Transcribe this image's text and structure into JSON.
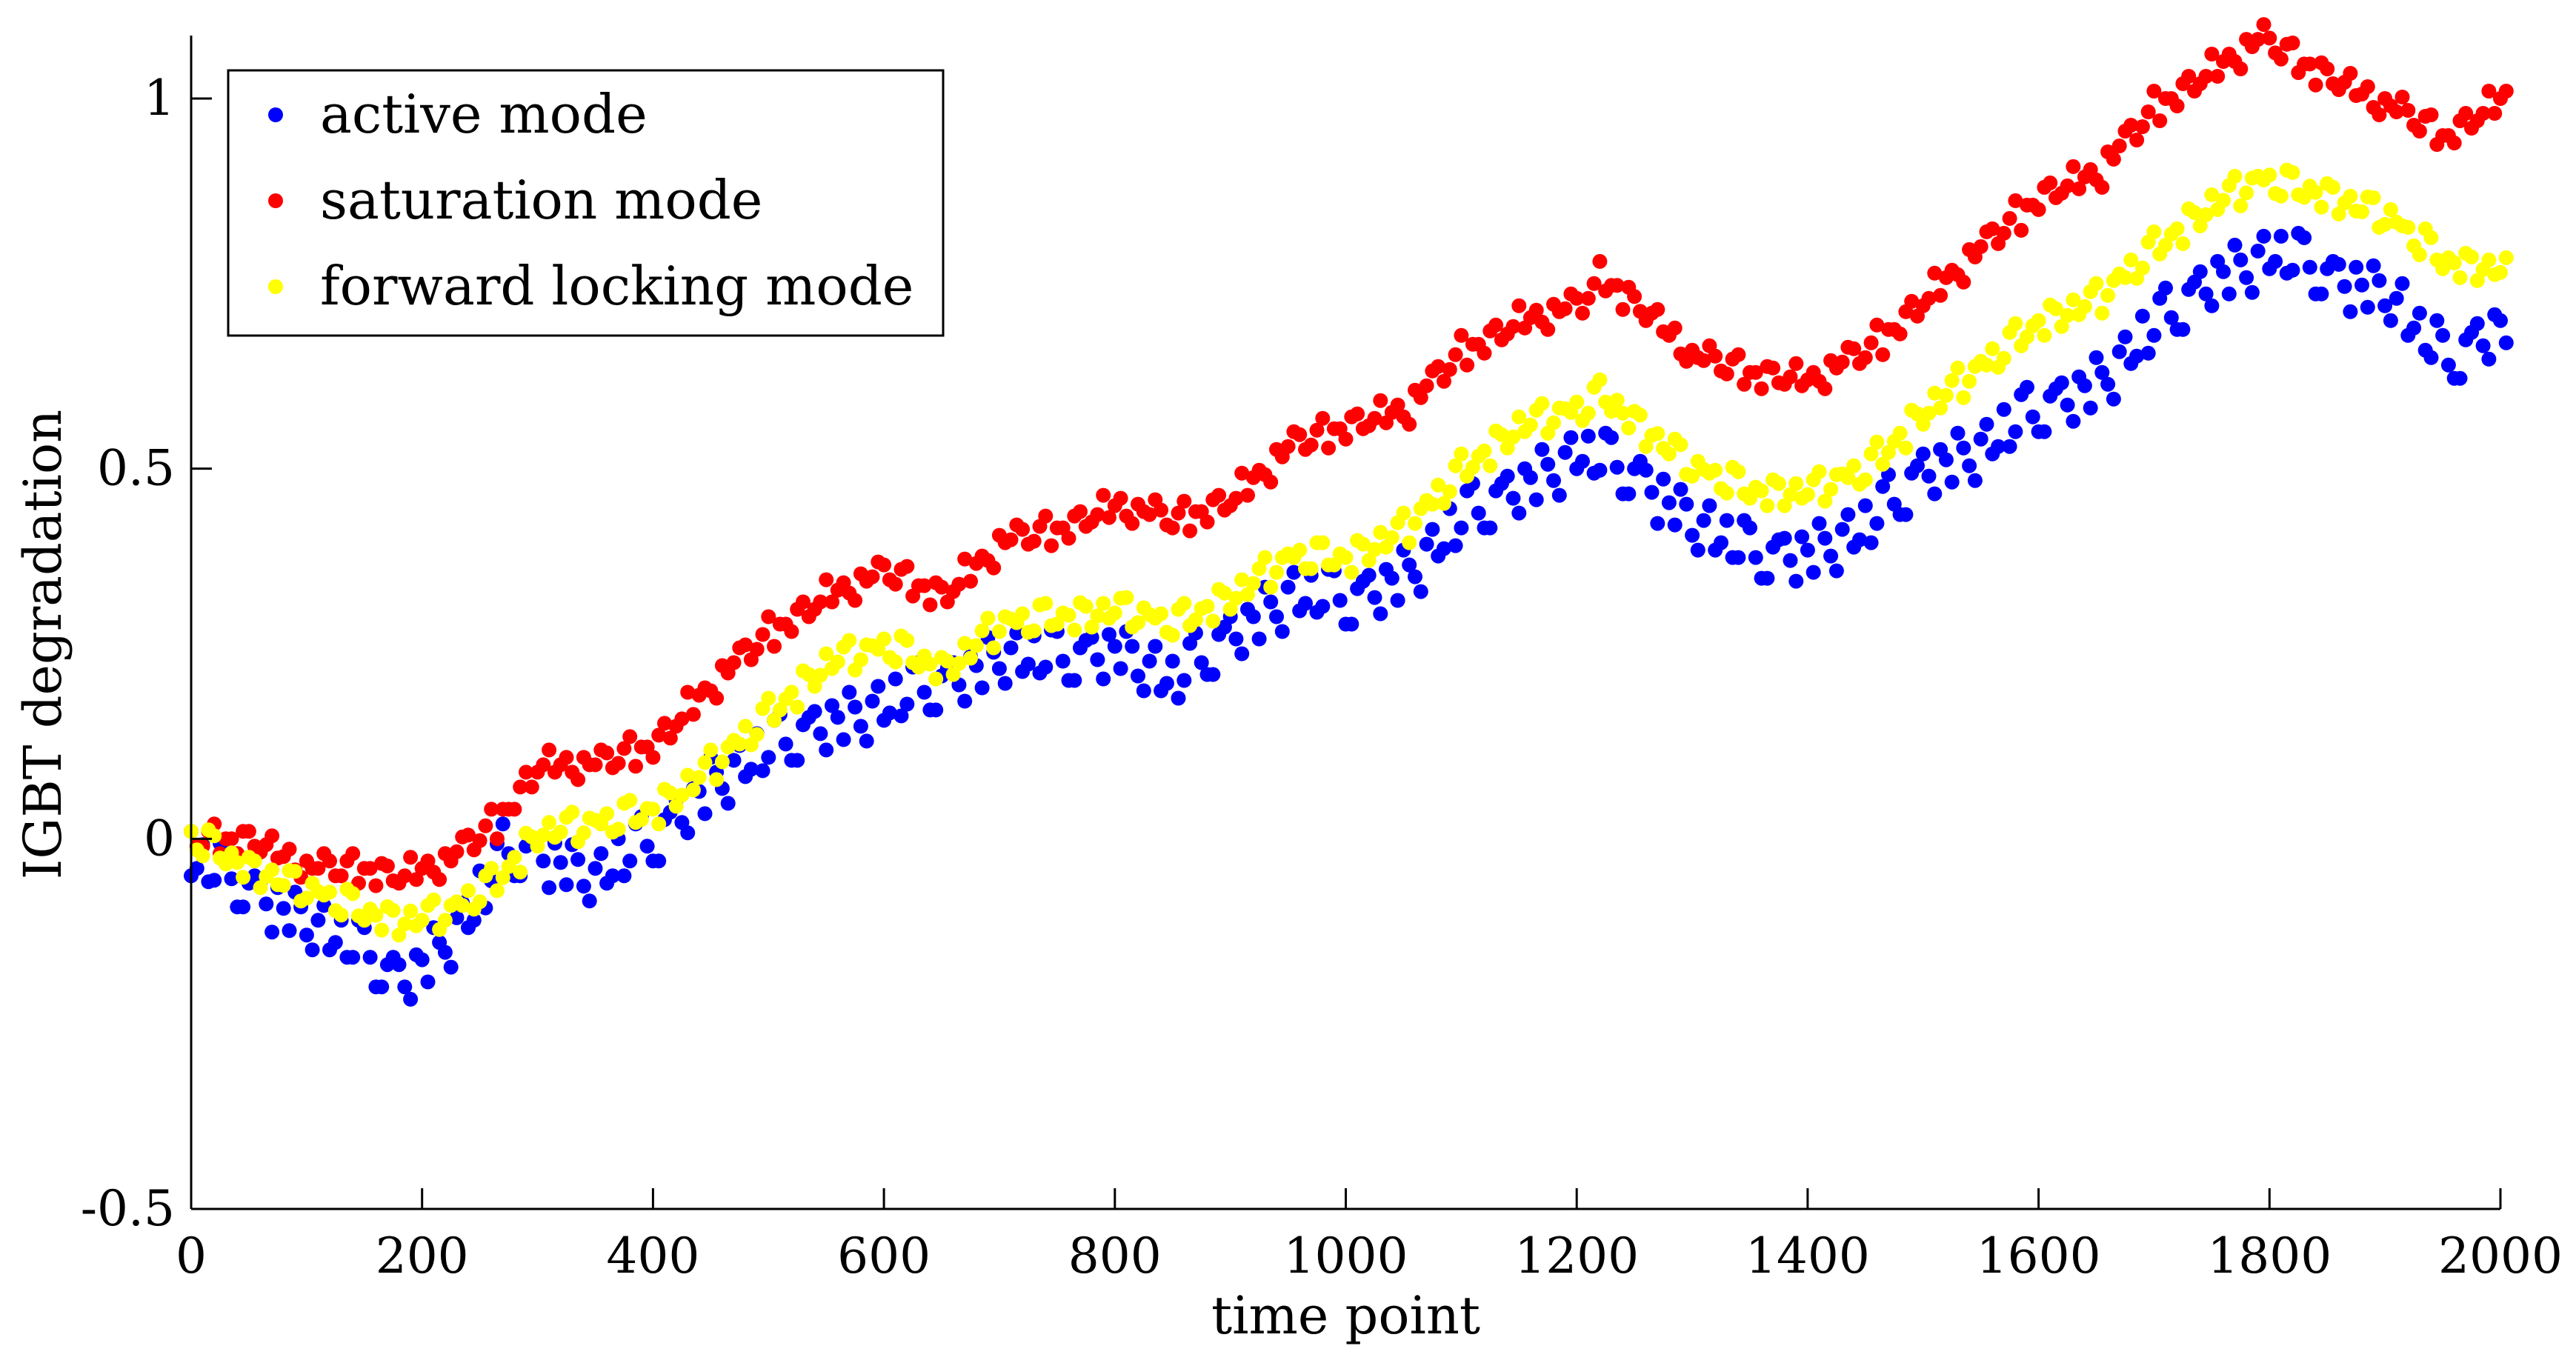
{
  "chart_data": {
    "type": "scatter",
    "title": "",
    "xlabel": "time point",
    "ylabel": "IGBT degradation",
    "xlim": [
      0,
      2000
    ],
    "ylim": [
      -0.5,
      1.1
    ],
    "xticks": [
      0,
      200,
      400,
      600,
      800,
      1000,
      1200,
      1400,
      1600,
      1800,
      2000
    ],
    "yticks": [
      -0.5,
      0,
      0.5,
      1
    ],
    "xtick_labels": [
      "0",
      "200",
      "400",
      "600",
      "800",
      "1000",
      "1200",
      "1400",
      "1600",
      "1800",
      "2000"
    ],
    "ytick_labels": [
      "-0.5",
      "0",
      "0.5",
      "1"
    ],
    "grid": false,
    "legend_position": "top-left",
    "sample_step": 10,
    "series": [
      {
        "name": "active mode",
        "color": "#0000FF",
        "keypoints": [
          [
            0,
            -0.03
          ],
          [
            50,
            -0.07
          ],
          [
            100,
            -0.11
          ],
          [
            150,
            -0.16
          ],
          [
            180,
            -0.19
          ],
          [
            210,
            -0.15
          ],
          [
            240,
            -0.1
          ],
          [
            270,
            -0.02
          ],
          [
            300,
            -0.02
          ],
          [
            350,
            -0.05
          ],
          [
            400,
            0.0
          ],
          [
            450,
            0.08
          ],
          [
            500,
            0.12
          ],
          [
            550,
            0.16
          ],
          [
            600,
            0.18
          ],
          [
            650,
            0.21
          ],
          [
            700,
            0.25
          ],
          [
            750,
            0.24
          ],
          [
            800,
            0.26
          ],
          [
            850,
            0.21
          ],
          [
            900,
            0.28
          ],
          [
            950,
            0.33
          ],
          [
            1000,
            0.32
          ],
          [
            1050,
            0.36
          ],
          [
            1100,
            0.43
          ],
          [
            1150,
            0.48
          ],
          [
            1200,
            0.52
          ],
          [
            1250,
            0.49
          ],
          [
            1300,
            0.43
          ],
          [
            1350,
            0.38
          ],
          [
            1400,
            0.39
          ],
          [
            1450,
            0.42
          ],
          [
            1500,
            0.5
          ],
          [
            1550,
            0.53
          ],
          [
            1600,
            0.58
          ],
          [
            1650,
            0.62
          ],
          [
            1700,
            0.69
          ],
          [
            1750,
            0.76
          ],
          [
            1800,
            0.79
          ],
          [
            1850,
            0.76
          ],
          [
            1900,
            0.74
          ],
          [
            1950,
            0.64
          ],
          [
            2000,
            0.7
          ]
        ],
        "noise": [
          -0.02,
          0.03,
          -0.01,
          0.04,
          -0.03,
          0.01,
          0.02,
          -0.04,
          0.0,
          0.03,
          -0.02,
          0.01
        ]
      },
      {
        "name": "saturation mode",
        "color": "#FF0000",
        "keypoints": [
          [
            0,
            0.0
          ],
          [
            50,
            0.0
          ],
          [
            100,
            -0.04
          ],
          [
            150,
            -0.04
          ],
          [
            180,
            -0.05
          ],
          [
            220,
            -0.03
          ],
          [
            260,
            0.02
          ],
          [
            300,
            0.1
          ],
          [
            350,
            0.1
          ],
          [
            400,
            0.13
          ],
          [
            450,
            0.21
          ],
          [
            500,
            0.28
          ],
          [
            550,
            0.33
          ],
          [
            600,
            0.36
          ],
          [
            650,
            0.33
          ],
          [
            700,
            0.4
          ],
          [
            750,
            0.42
          ],
          [
            800,
            0.45
          ],
          [
            850,
            0.43
          ],
          [
            900,
            0.46
          ],
          [
            950,
            0.53
          ],
          [
            1000,
            0.56
          ],
          [
            1050,
            0.58
          ],
          [
            1100,
            0.66
          ],
          [
            1150,
            0.7
          ],
          [
            1200,
            0.72
          ],
          [
            1220,
            0.76
          ],
          [
            1260,
            0.71
          ],
          [
            1300,
            0.65
          ],
          [
            1350,
            0.63
          ],
          [
            1400,
            0.62
          ],
          [
            1450,
            0.66
          ],
          [
            1500,
            0.73
          ],
          [
            1550,
            0.8
          ],
          [
            1600,
            0.87
          ],
          [
            1650,
            0.9
          ],
          [
            1700,
            0.99
          ],
          [
            1750,
            1.04
          ],
          [
            1790,
            1.08
          ],
          [
            1850,
            1.03
          ],
          [
            1900,
            0.99
          ],
          [
            1950,
            0.95
          ],
          [
            2000,
            1.0
          ]
        ],
        "noise": [
          0.01,
          -0.01,
          0.02,
          0.0,
          -0.02,
          0.01,
          -0.01,
          0.02,
          0.0,
          -0.01,
          0.01,
          0.0
        ]
      },
      {
        "name": "forward locking mode",
        "color": "#FFFF00",
        "keypoints": [
          [
            0,
            0.0
          ],
          [
            50,
            -0.04
          ],
          [
            100,
            -0.07
          ],
          [
            150,
            -0.1
          ],
          [
            180,
            -0.11
          ],
          [
            220,
            -0.1
          ],
          [
            260,
            -0.06
          ],
          [
            300,
            0.01
          ],
          [
            350,
            0.02
          ],
          [
            400,
            0.04
          ],
          [
            450,
            0.1
          ],
          [
            500,
            0.17
          ],
          [
            550,
            0.24
          ],
          [
            600,
            0.26
          ],
          [
            650,
            0.23
          ],
          [
            700,
            0.29
          ],
          [
            750,
            0.3
          ],
          [
            800,
            0.31
          ],
          [
            850,
            0.29
          ],
          [
            900,
            0.33
          ],
          [
            950,
            0.38
          ],
          [
            1000,
            0.38
          ],
          [
            1050,
            0.42
          ],
          [
            1100,
            0.5
          ],
          [
            1150,
            0.56
          ],
          [
            1200,
            0.58
          ],
          [
            1220,
            0.6
          ],
          [
            1260,
            0.55
          ],
          [
            1300,
            0.5
          ],
          [
            1350,
            0.47
          ],
          [
            1400,
            0.47
          ],
          [
            1450,
            0.5
          ],
          [
            1500,
            0.58
          ],
          [
            1550,
            0.64
          ],
          [
            1600,
            0.7
          ],
          [
            1650,
            0.73
          ],
          [
            1700,
            0.8
          ],
          [
            1750,
            0.86
          ],
          [
            1790,
            0.89
          ],
          [
            1850,
            0.87
          ],
          [
            1900,
            0.84
          ],
          [
            1950,
            0.78
          ],
          [
            2000,
            0.77
          ]
        ],
        "noise": [
          0.01,
          -0.015,
          0.02,
          -0.01,
          0.0,
          0.015,
          -0.02,
          0.01,
          -0.005,
          0.02,
          -0.01,
          0.005
        ]
      }
    ]
  }
}
